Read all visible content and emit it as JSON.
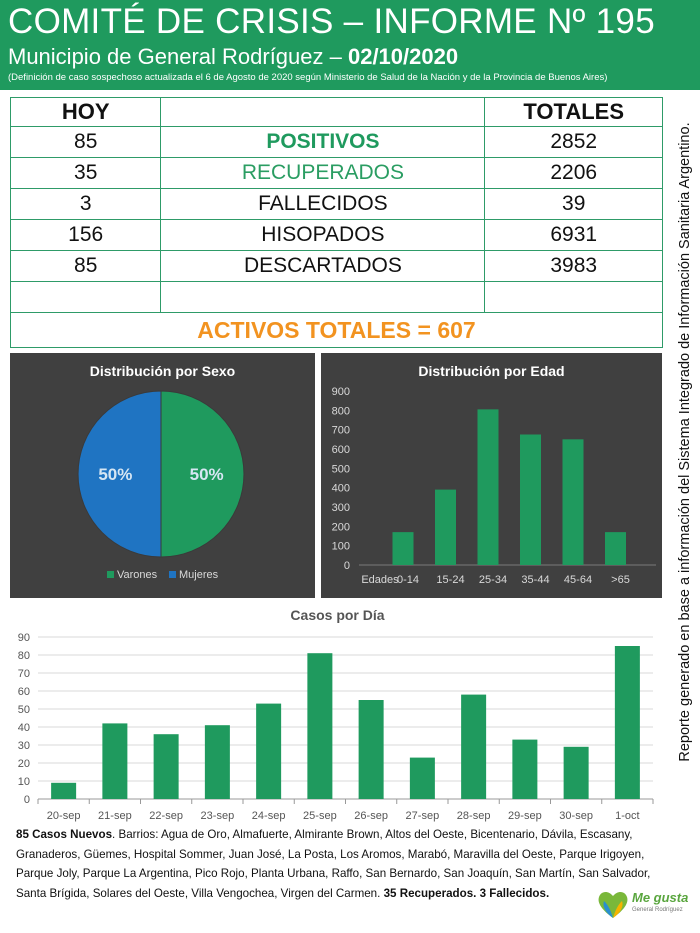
{
  "header": {
    "title": "COMITÉ DE CRISIS – INFORME Nº 195",
    "subtitle_prefix": "Municipio de General Rodríguez – ",
    "date": "02/10/2020",
    "note": "(Definición de caso sospechoso actualizada el 6 de Agosto de 2020 según Ministerio de Salud de la Nación y de la Provincia de Buenos Aires)"
  },
  "summary": {
    "col_today": "HOY",
    "col_totals": "TOTALES",
    "rows": [
      {
        "today": "85",
        "label": "POSITIVOS",
        "total": "2852"
      },
      {
        "today": "35",
        "label": "RECUPERADOS",
        "total": "2206"
      },
      {
        "today": "3",
        "label": "FALLECIDOS",
        "total": "39"
      },
      {
        "today": "156",
        "label": "HISOPADOS",
        "total": "6931"
      },
      {
        "today": "85",
        "label": "DESCARTADOS",
        "total": "3983"
      }
    ],
    "activos": "ACTIVOS TOTALES = 607"
  },
  "colors": {
    "green": "#1f9a5e",
    "blue": "#1f74c2",
    "orange": "#f29320",
    "panel": "#404040"
  },
  "chart_data": [
    {
      "type": "pie",
      "title": "Distribución por Sexo",
      "labels": [
        "Varones",
        "Mujeres"
      ],
      "values": [
        50,
        50
      ],
      "data_labels": [
        "50%",
        "50%"
      ],
      "legend": "bottom"
    },
    {
      "type": "bar",
      "title": "Distribución por Edad",
      "xlabel": "Edades",
      "categories": [
        "0-14",
        "15-24",
        "25-34",
        "35-44",
        "45-64",
        ">65"
      ],
      "values": [
        170,
        390,
        805,
        675,
        650,
        170
      ],
      "ylim": [
        0,
        900
      ],
      "yticks": [
        0,
        100,
        200,
        300,
        400,
        500,
        600,
        700,
        800,
        900
      ],
      "grid": false
    },
    {
      "type": "bar",
      "title": "Casos por Día",
      "categories": [
        "20-sep",
        "21-sep",
        "22-sep",
        "23-sep",
        "24-sep",
        "25-sep",
        "26-sep",
        "27-sep",
        "28-sep",
        "29-sep",
        "30-sep",
        "1-oct"
      ],
      "values": [
        9,
        42,
        36,
        41,
        53,
        81,
        55,
        23,
        58,
        33,
        29,
        85
      ],
      "ylim": [
        0,
        90
      ],
      "yticks": [
        0,
        10,
        20,
        30,
        40,
        50,
        60,
        70,
        80,
        90
      ],
      "grid": true
    }
  ],
  "side_text": "Reporte generado en base a información del Sistema Integrado de Información Sanitaria Argentino.",
  "footer": {
    "lead": "85 Casos Nuevos",
    "barrios": ". Barrios: Agua de Oro, Almafuerte, Almirante Brown, Altos del Oeste, Bicentenario, Dávila, Escasany, Granaderos, Güemes, Hospital Sommer, Juan José, La Posta, Los Aromos, Marabó, Maravilla del Oeste, Parque Irigoyen, Parque Joly, Parque La Argentina, Pico Rojo, Planta Urbana, Raffo, San Bernardo, San Joaquín, San Martín, San Salvador, Santa Brígida, Solares del Oeste, Villa Vengochea, Virgen del Carmen. ",
    "closing": "35 Recuperados. 3 Fallecidos."
  },
  "logo": {
    "text": "Me gusta",
    "subtext": "General Rodríguez",
    "icon": "heart-logo-icon"
  }
}
